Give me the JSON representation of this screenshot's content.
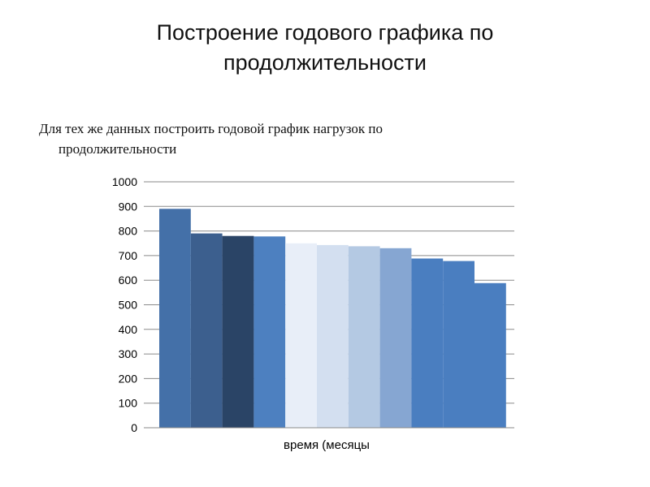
{
  "slide": {
    "title_line1": "Построение годового графика по",
    "title_line2": "продолжительности",
    "body_line1": "Для тех же данных построить годовой график нагрузок  по",
    "body_line2": "продолжительности"
  },
  "chart_data": {
    "type": "bar",
    "title": "",
    "xlabel": "время (месяцы",
    "ylabel": "",
    "ylim": [
      0,
      1000
    ],
    "yticks": [
      0,
      100,
      200,
      300,
      400,
      500,
      600,
      700,
      800,
      900,
      1000
    ],
    "grid": true,
    "legend": "none",
    "values": [
      890,
      790,
      780,
      778,
      750,
      743,
      738,
      730,
      688,
      678,
      588
    ],
    "colors": [
      "#4470a8",
      "#3c5f8e",
      "#2a4466",
      "#4d80c0",
      "#e8eef8",
      "#d3dff0",
      "#b4c9e3",
      "#86a6d2",
      "#4a7ec0",
      "#4a7ec0",
      "#4a7ec0"
    ]
  }
}
